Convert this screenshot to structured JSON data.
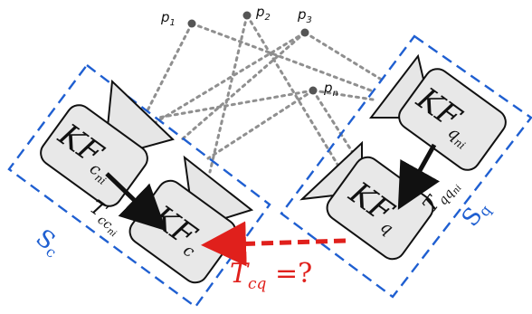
{
  "points": [
    {
      "name": "p",
      "sub": "1"
    },
    {
      "name": "p",
      "sub": "2"
    },
    {
      "name": "p",
      "sub": "3"
    },
    {
      "name": "p",
      "sub": "n"
    }
  ],
  "keyframes": {
    "kf_c_ni": {
      "main": "KF",
      "sub": "c",
      "subsub": "ni"
    },
    "kf_c": {
      "main": "KF",
      "sub": "c"
    },
    "kf_q_ni": {
      "main": "KF",
      "sub": "q",
      "subsub": "ni"
    },
    "kf_q": {
      "main": "KF",
      "sub": "q"
    }
  },
  "transforms": {
    "t_cc": {
      "main": "T",
      "sub": "cc",
      "subsub": "ni"
    },
    "t_qq": {
      "main": "T",
      "sub": "qq",
      "subsub": "ni"
    },
    "t_cq": {
      "main": "T",
      "sub": "cq",
      "rest": " =?"
    }
  },
  "groups": {
    "s_c": {
      "main": "S",
      "sub": "c"
    },
    "s_q": {
      "main": "S",
      "sub": "q"
    }
  },
  "colors": {
    "group_outline": "#1f5fd1",
    "unknown_transform": "#e0201c",
    "ray": "#8f8f8f"
  }
}
